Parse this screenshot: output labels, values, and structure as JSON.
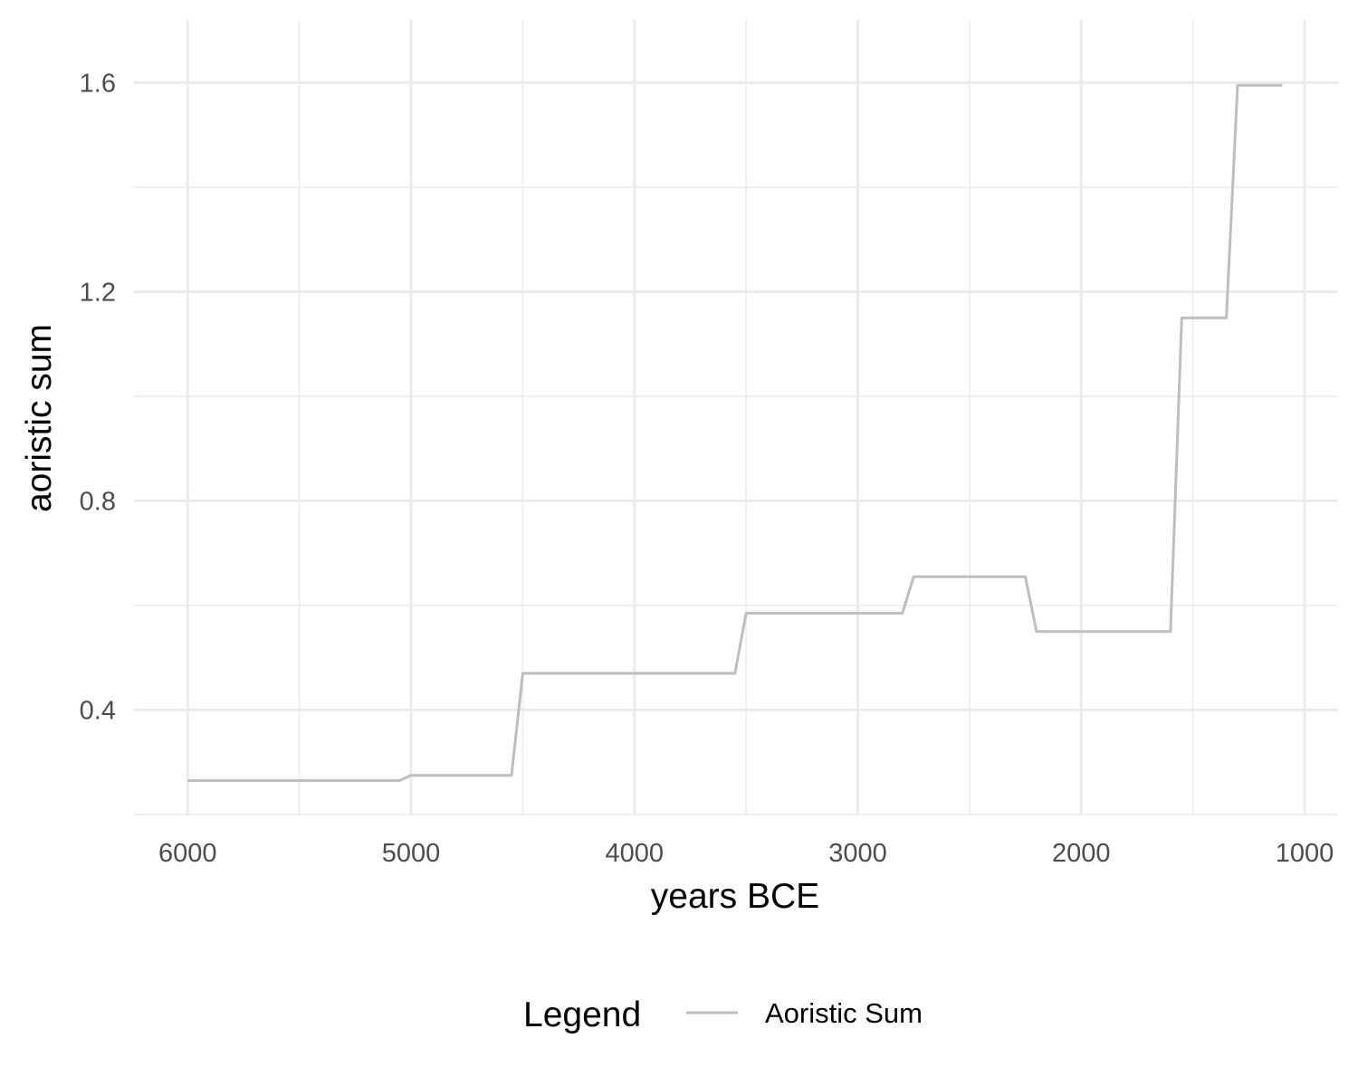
{
  "chart_data": {
    "type": "line",
    "title": "",
    "xlabel": "years BCE",
    "ylabel": "aoristic sum",
    "x_reversed": true,
    "xlim": [
      6240,
      850
    ],
    "ylim": [
      0.2,
      1.72
    ],
    "x_ticks": [
      6000,
      5000,
      4000,
      3000,
      2000,
      1000
    ],
    "x_tick_labels": [
      "6000",
      "5000",
      "4000",
      "3000",
      "2000",
      "1000"
    ],
    "y_ticks": [
      0.4,
      0.8,
      1.2,
      1.6
    ],
    "y_tick_labels": [
      "0.4",
      "0.8",
      "1.2",
      "1.6"
    ],
    "x_minor_ticks": [
      5500,
      4500,
      3500,
      2500,
      1500
    ],
    "y_minor_ticks": [
      0.2,
      0.6,
      1.0,
      1.4
    ],
    "grid": true,
    "legend": {
      "title": "Legend",
      "position": "bottom"
    },
    "series": [
      {
        "name": "Aoristic Sum",
        "color": "#bebebe",
        "x": [
          6000,
          5050,
          5000,
          4550,
          4500,
          3550,
          3500,
          2800,
          2750,
          2250,
          2200,
          1600,
          1550,
          1350,
          1300,
          1100
        ],
        "y": [
          0.265,
          0.265,
          0.275,
          0.275,
          0.47,
          0.47,
          0.585,
          0.585,
          0.655,
          0.655,
          0.55,
          0.55,
          1.15,
          1.15,
          1.595,
          1.595
        ]
      }
    ]
  }
}
